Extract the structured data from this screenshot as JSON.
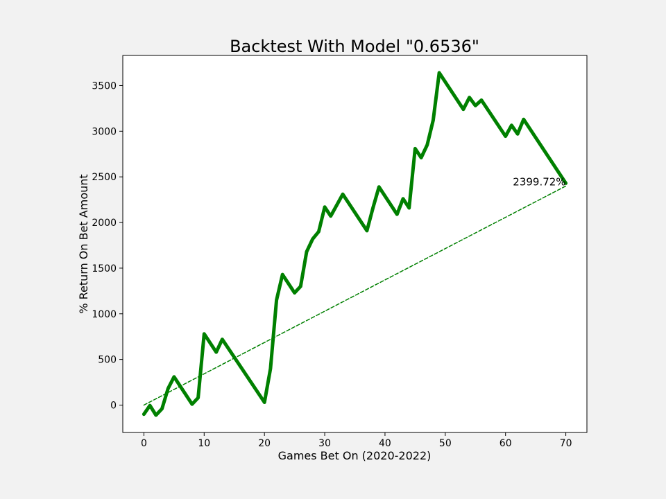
{
  "chart_data": {
    "type": "line",
    "title": "Backtest With Model \"0.6536\"",
    "xlabel": "Games Bet On (2020-2022)",
    "ylabel": "% Return On Bet Amount",
    "xlim": [
      -3.5,
      73.5
    ],
    "ylim": [
      -300,
      3830
    ],
    "xticks": [
      0,
      10,
      20,
      30,
      40,
      50,
      60,
      70
    ],
    "yticks": [
      0,
      500,
      1000,
      1500,
      2000,
      2500,
      3000,
      3500
    ],
    "grid": false,
    "series": [
      {
        "color": "#008000",
        "style": "solid",
        "x": [
          0,
          1,
          2,
          3,
          4,
          5,
          8,
          9,
          10,
          12,
          13,
          20,
          21,
          22,
          23,
          25,
          26,
          27,
          28,
          29,
          30,
          31,
          33,
          37,
          38,
          39,
          42,
          43,
          44,
          45,
          46,
          47,
          48,
          49,
          53,
          54,
          55,
          56,
          60,
          61,
          62,
          63,
          70
        ],
        "y": [
          -100,
          -5,
          -110,
          -40,
          180,
          310,
          10,
          80,
          780,
          580,
          720,
          30,
          400,
          1150,
          1430,
          1230,
          1300,
          1680,
          1820,
          1900,
          2170,
          2070,
          2310,
          1910,
          2160,
          2390,
          2090,
          2260,
          2160,
          2810,
          2710,
          2850,
          3120,
          3640,
          3240,
          3370,
          3280,
          3340,
          2945,
          3065,
          2970,
          3130,
          2430
        ]
      },
      {
        "color": "#008000",
        "style": "dashed",
        "x": [
          0,
          70
        ],
        "y": [
          0,
          2399.72
        ]
      }
    ],
    "annotations": [
      {
        "text": "2399.72%",
        "x": 70,
        "y": 2430
      }
    ]
  }
}
